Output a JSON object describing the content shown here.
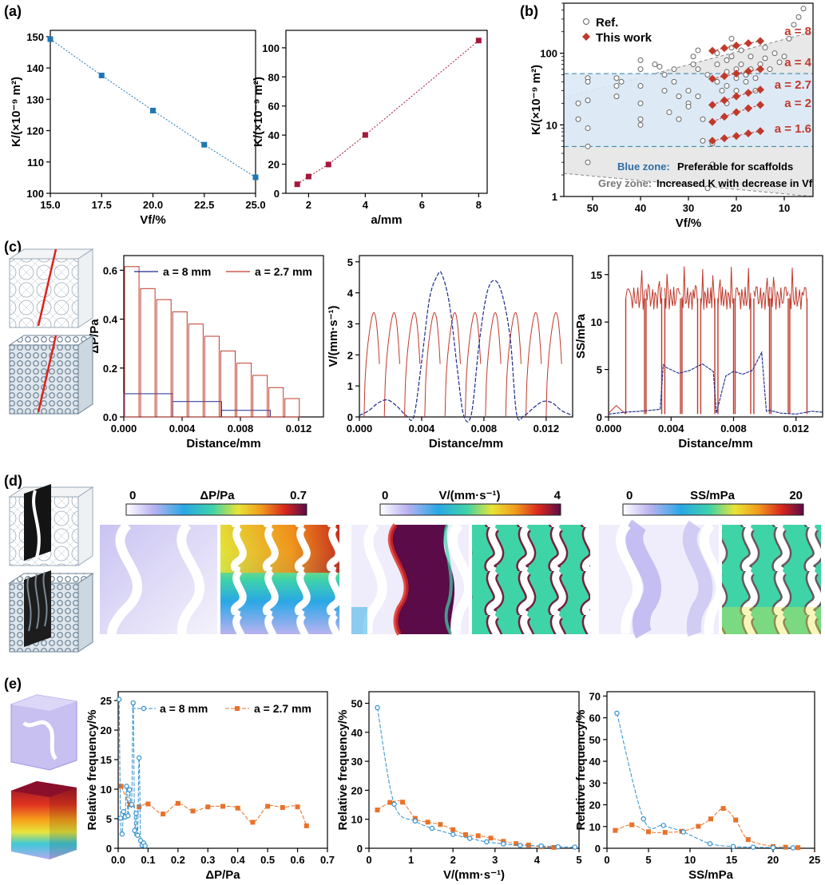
{
  "panels": {
    "a": "(a)",
    "b": "(b)",
    "c": "(c)",
    "d": "(d)",
    "e": "(e)"
  },
  "colors": {
    "blue": "#1f77b4",
    "crimson": "#a6173a",
    "darkblue": "#1a2a8c",
    "red": "#c0392b",
    "orange": "#e8722a",
    "lightblue": "#2f8fd0",
    "bluezone": "#dbe9f6",
    "greyzone": "#e4e4e4"
  },
  "chart_data": [
    {
      "id": "a1",
      "type": "line",
      "title": "",
      "xlabel": "Vf/%",
      "ylabel": "K/(×10⁻⁹ m²)",
      "xlim": [
        15,
        25
      ],
      "ylim": [
        100,
        152
      ],
      "xticks": [
        "15.0",
        "17.5",
        "20.0",
        "22.5",
        "25.0"
      ],
      "yticks": [
        "100",
        "110",
        "120",
        "130",
        "140",
        "150"
      ],
      "x": [
        15.0,
        17.5,
        20.0,
        22.5,
        25.0
      ],
      "values": [
        149.2,
        137.6,
        126.4,
        115.5,
        105.1
      ]
    },
    {
      "id": "a2",
      "type": "line",
      "xlabel": "a/mm",
      "ylabel": "K/(×10⁻⁹ m²)",
      "xlim": [
        1.2,
        8.3
      ],
      "ylim": [
        0,
        112
      ],
      "xticks": [
        "2",
        "4",
        "6",
        "8"
      ],
      "yticks": [
        "0",
        "20",
        "40",
        "60",
        "80",
        "100"
      ],
      "x": [
        1.6,
        2.0,
        2.7,
        4.0,
        8.0
      ],
      "values": [
        6.2,
        11.5,
        19.8,
        40.1,
        105.0
      ]
    },
    {
      "id": "b",
      "type": "scatter",
      "xlabel": "Vf/%",
      "ylabel": "K/(×10⁻⁹ m²)",
      "xscale": "linear-reversed",
      "yscale": "log",
      "xlim": [
        56,
        4
      ],
      "ylim": [
        1,
        500
      ],
      "xticks": [
        "50",
        "40",
        "30",
        "20",
        "10"
      ],
      "yticks": [
        "1",
        "10",
        "100"
      ],
      "legend": [
        "Ref.",
        "This work"
      ],
      "annotations": [
        "a = 8",
        "a = 4",
        "a = 2.7",
        "a = 2",
        "a = 1.6"
      ],
      "zone_text": {
        "blue_label": "Blue zone:",
        "blue_text": "Preferable for scaffolds",
        "grey_label": "Grey zone:",
        "grey_text": "Increased K with decrease in Vf"
      },
      "blue_zone": [
        5,
        52
      ],
      "series": [
        {
          "name": "This work a=8",
          "x": [
            25,
            22.5,
            20,
            17.5,
            15
          ],
          "values": [
            108,
            118,
            128,
            138,
            148
          ]
        },
        {
          "name": "This work a=4",
          "x": [
            25,
            22.5,
            20,
            17.5,
            15
          ],
          "values": [
            44,
            48,
            52,
            56,
            60
          ]
        },
        {
          "name": "This work a=2.7",
          "x": [
            25,
            22.5,
            20,
            17.5,
            15
          ],
          "values": [
            19,
            22,
            25,
            28,
            31
          ]
        },
        {
          "name": "This work a=2",
          "x": [
            25,
            22.5,
            20,
            17.5,
            15
          ],
          "values": [
            11,
            13,
            15,
            17,
            19
          ]
        },
        {
          "name": "This work a=1.6",
          "x": [
            25,
            22.5,
            20,
            17.5,
            15
          ],
          "values": [
            6,
            6.5,
            7,
            7.6,
            8.2
          ]
        }
      ],
      "ref_points": [
        [
          53,
          20
        ],
        [
          53,
          12
        ],
        [
          51,
          45
        ],
        [
          51,
          40
        ],
        [
          51,
          22
        ],
        [
          51,
          9
        ],
        [
          51,
          5
        ],
        [
          51,
          3
        ],
        [
          45,
          45
        ],
        [
          45,
          35
        ],
        [
          45,
          25
        ],
        [
          44,
          40
        ],
        [
          40,
          80
        ],
        [
          40,
          60
        ],
        [
          40,
          35
        ],
        [
          40,
          20
        ],
        [
          40,
          12
        ],
        [
          40,
          10
        ],
        [
          37,
          70
        ],
        [
          36,
          65
        ],
        [
          35,
          50
        ],
        [
          35,
          30
        ],
        [
          34,
          15
        ],
        [
          33,
          60
        ],
        [
          33,
          40
        ],
        [
          32,
          25
        ],
        [
          32,
          12
        ],
        [
          30,
          30
        ],
        [
          30,
          20
        ],
        [
          30,
          18
        ],
        [
          29,
          90
        ],
        [
          29,
          70
        ],
        [
          28,
          110
        ],
        [
          28,
          60
        ],
        [
          28,
          25
        ],
        [
          27,
          12
        ],
        [
          27,
          6
        ],
        [
          26,
          50
        ],
        [
          26,
          1.3
        ],
        [
          25,
          5.5
        ],
        [
          25,
          2.8
        ],
        [
          24,
          100
        ],
        [
          24,
          70
        ],
        [
          24,
          40
        ],
        [
          23,
          30
        ],
        [
          22,
          80
        ],
        [
          22,
          55
        ],
        [
          22,
          35
        ],
        [
          22,
          20
        ],
        [
          21,
          160
        ],
        [
          21,
          120
        ],
        [
          21,
          90
        ],
        [
          20,
          60
        ],
        [
          20,
          45
        ],
        [
          20,
          30
        ],
        [
          19,
          110
        ],
        [
          19,
          70
        ],
        [
          18,
          50
        ],
        [
          18,
          40
        ],
        [
          17,
          90
        ],
        [
          17,
          60
        ],
        [
          16,
          45
        ],
        [
          16,
          30
        ],
        [
          15,
          70
        ],
        [
          14,
          120
        ],
        [
          14,
          85
        ],
        [
          13,
          60
        ],
        [
          12,
          100
        ],
        [
          11,
          75
        ],
        [
          10,
          90
        ],
        [
          9,
          160
        ],
        [
          8,
          250
        ],
        [
          7,
          320
        ],
        [
          6,
          420
        ]
      ]
    },
    {
      "id": "c1",
      "type": "bar",
      "xlabel": "Distance/mm",
      "ylabel": "ΔP/Pa",
      "xlim": [
        0,
        0.0137
      ],
      "ylim": [
        0,
        0.66
      ],
      "xticks": [
        "0.000",
        "0.004",
        "0.008",
        "0.012"
      ],
      "yticks": [
        "0.0",
        "0.2",
        "0.4",
        "0.6"
      ],
      "legend": [
        "a = 8 mm",
        "a = 2.7 mm"
      ],
      "series": [
        {
          "name": "a = 8 mm",
          "edges": [
            0,
            0.00335,
            0.0067,
            0.01005
          ],
          "values": [
            0.095,
            0.063,
            0.027
          ]
        },
        {
          "name": "a = 2.7 mm",
          "edges": [
            0,
            0.0011,
            0.0022,
            0.0033,
            0.0044,
            0.0055,
            0.0066,
            0.0077,
            0.0088,
            0.0099,
            0.011,
            0.0121
          ],
          "values": [
            0.615,
            0.525,
            0.48,
            0.43,
            0.38,
            0.33,
            0.27,
            0.22,
            0.17,
            0.12,
            0.075
          ]
        }
      ]
    },
    {
      "id": "c2",
      "type": "line",
      "xlabel": "Distance/mm",
      "ylabel": "V/(mm·s⁻¹)",
      "xlim": [
        0,
        0.0137
      ],
      "ylim": [
        0,
        5.2
      ],
      "xticks": [
        "0.000",
        "0.004",
        "0.008",
        "0.012"
      ],
      "yticks": [
        "0",
        "1",
        "2",
        "3",
        "4",
        "5"
      ],
      "series": [
        {
          "name": "a = 8 mm",
          "x": [
            0,
            0.0006,
            0.0012,
            0.0018,
            0.0024,
            0.003,
            0.0035,
            0.004,
            0.0045,
            0.005,
            0.0053,
            0.0058,
            0.0063,
            0.0067,
            0.0072,
            0.0077,
            0.0082,
            0.0087,
            0.0092,
            0.0097,
            0.0101,
            0.0106,
            0.0112,
            0.0118,
            0.0124,
            0.013,
            0.0137
          ],
          "values": [
            0.05,
            0.2,
            0.45,
            0.55,
            0.35,
            0.05,
            0.02,
            1.8,
            3.8,
            4.55,
            4.6,
            3.6,
            1.5,
            0.05,
            0.1,
            2.4,
            4.0,
            4.4,
            3.9,
            2.5,
            0.1,
            0.05,
            0.3,
            0.5,
            0.45,
            0.2,
            0.05
          ]
        }
      ],
      "arches": {
        "name": "a = 2.7 mm",
        "starts": [
          0.0003,
          0.0016,
          0.0029,
          0.0042,
          0.0055,
          0.0068,
          0.0081,
          0.0094,
          0.0107,
          0.012
        ],
        "width": 0.0011,
        "peak": 3.3
      }
    },
    {
      "id": "c3",
      "type": "line",
      "xlabel": "Distance/mm",
      "ylabel": "SS/mPa",
      "xlim": [
        0,
        0.0137
      ],
      "ylim": [
        0,
        17
      ],
      "xticks": [
        "0.000",
        "0.004",
        "0.008",
        "0.012"
      ],
      "yticks": [
        "0",
        "5",
        "10",
        "15"
      ],
      "series": [
        {
          "name": "a = 8 mm",
          "x": [
            0,
            0.001,
            0.002,
            0.0033,
            0.0035,
            0.0037,
            0.0045,
            0.0052,
            0.006,
            0.0067,
            0.0069,
            0.0075,
            0.008,
            0.0086,
            0.0092,
            0.0098,
            0.0101,
            0.0103,
            0.011,
            0.012,
            0.013,
            0.0137
          ],
          "values": [
            0.3,
            0.5,
            0.6,
            0.8,
            5.5,
            5.2,
            4.6,
            4.9,
            5.6,
            4.8,
            0.4,
            4.3,
            4.8,
            4.5,
            4.9,
            6.8,
            0.6,
            0.7,
            0.4,
            0.3,
            0.6,
            0.5
          ]
        },
        {
          "name": "a = 2.7 mm",
          "segments": [
            [
              0.0011,
              0.0023
            ],
            [
              0.0024,
              0.0034
            ],
            [
              0.0036,
              0.0046
            ],
            [
              0.0047,
              0.0057
            ],
            [
              0.0059,
              0.0068
            ],
            [
              0.007,
              0.008
            ],
            [
              0.0081,
              0.0091
            ],
            [
              0.0093,
              0.0103
            ],
            [
              0.0104,
              0.0115
            ],
            [
              0.0116,
              0.0127
            ]
          ],
          "level": 12.5
        }
      ]
    },
    {
      "id": "e1",
      "type": "line",
      "xlabel": "ΔP/Pa",
      "ylabel": "Relative frequency/%",
      "xlim": [
        0,
        0.7
      ],
      "ylim": [
        0,
        26.5
      ],
      "xticks": [
        "0.0",
        "0.1",
        "0.2",
        "0.3",
        "0.4",
        "0.5",
        "0.6",
        "0.7"
      ],
      "yticks": [
        "0",
        "5",
        "10",
        "15",
        "20",
        "25"
      ],
      "legend": [
        "a = 8 mm",
        "a = 2.7 mm"
      ],
      "series": [
        {
          "name": "a = 8 mm",
          "x": [
            0.003,
            0.008,
            0.013,
            0.018,
            0.023,
            0.028,
            0.033,
            0.038,
            0.045,
            0.05,
            0.055,
            0.06,
            0.065,
            0.07,
            0.075,
            0.08,
            0.085,
            0.09
          ],
          "values": [
            25.2,
            5.1,
            2.4,
            6.2,
            5.3,
            10.5,
            5.5,
            9.9,
            7.4,
            24.6,
            3.0,
            5.9,
            2.2,
            15.3,
            1.3,
            0.5,
            0.9,
            0.4
          ]
        },
        {
          "name": "a = 2.7 mm",
          "x": [
            0.01,
            0.04,
            0.07,
            0.1,
            0.15,
            0.2,
            0.25,
            0.3,
            0.35,
            0.4,
            0.45,
            0.5,
            0.55,
            0.6,
            0.63
          ],
          "values": [
            10.5,
            7.4,
            7.0,
            7.5,
            5.8,
            7.6,
            6.3,
            7.0,
            7.1,
            6.8,
            4.4,
            7.1,
            6.9,
            7.0,
            3.8
          ]
        }
      ]
    },
    {
      "id": "e2",
      "type": "line",
      "xlabel": "V/(mm·s⁻¹)",
      "ylabel": "Relative frequency/%",
      "xlim": [
        0,
        5
      ],
      "ylim": [
        0,
        54
      ],
      "xticks": [
        "0",
        "1",
        "2",
        "3",
        "4",
        "5"
      ],
      "yticks": [
        "0",
        "10",
        "20",
        "30",
        "40",
        "50"
      ],
      "series": [
        {
          "name": "a = 8 mm",
          "x": [
            0.2,
            0.6,
            1.1,
            1.5,
            2.0,
            2.4,
            2.8,
            3.2,
            3.6,
            4.1,
            4.5,
            4.9
          ],
          "values": [
            48.5,
            15.2,
            9.4,
            6.9,
            4.8,
            3.4,
            2.2,
            1.5,
            1.0,
            0.8,
            0.5,
            0.4
          ]
        },
        {
          "name": "a = 2.7 mm",
          "x": [
            0.2,
            0.5,
            0.8,
            1.1,
            1.4,
            1.7,
            2.0,
            2.3,
            2.6,
            2.9,
            3.2,
            3.5,
            3.8,
            4.1,
            4.4
          ],
          "values": [
            13.2,
            15.8,
            15.9,
            10.3,
            9.0,
            8.2,
            6.4,
            4.7,
            4.3,
            3.5,
            2.4,
            1.6,
            1.1,
            0.5,
            0.3
          ]
        }
      ]
    },
    {
      "id": "e3",
      "type": "line",
      "xlabel": "SS/mPa",
      "ylabel": "Relative frequency/%",
      "xlim": [
        0,
        25
      ],
      "ylim": [
        0,
        72
      ],
      "xticks": [
        "0",
        "5",
        "10",
        "15",
        "20",
        "25"
      ],
      "yticks": [
        "0",
        "10",
        "20",
        "30",
        "40",
        "50",
        "60",
        "70"
      ],
      "series": [
        {
          "name": "a = 8 mm",
          "x": [
            1.2,
            4.4,
            6.8,
            9.2,
            12.4,
            15.2,
            17.6,
            20.0,
            22.4
          ],
          "values": [
            62.1,
            13.5,
            10.5,
            7.5,
            2.1,
            0.8,
            0.5,
            0.3,
            0.2
          ]
        },
        {
          "name": "a = 2.7 mm",
          "x": [
            1,
            3,
            5,
            7,
            9,
            11,
            12.5,
            14,
            15.5,
            17,
            20,
            21.5,
            23
          ],
          "values": [
            8.2,
            10.8,
            7.6,
            7.3,
            7.8,
            10.1,
            13.5,
            18.3,
            13.0,
            4.0,
            0.8,
            0.5,
            0.3
          ]
        }
      ]
    }
  ],
  "colorbars": [
    {
      "title": "ΔP/Pa",
      "min": "0",
      "max": "0.7"
    },
    {
      "title": "V/(mm·s⁻¹)",
      "min": "0",
      "max": "4"
    },
    {
      "title": "SS/mPa",
      "min": "0",
      "max": "20"
    }
  ]
}
